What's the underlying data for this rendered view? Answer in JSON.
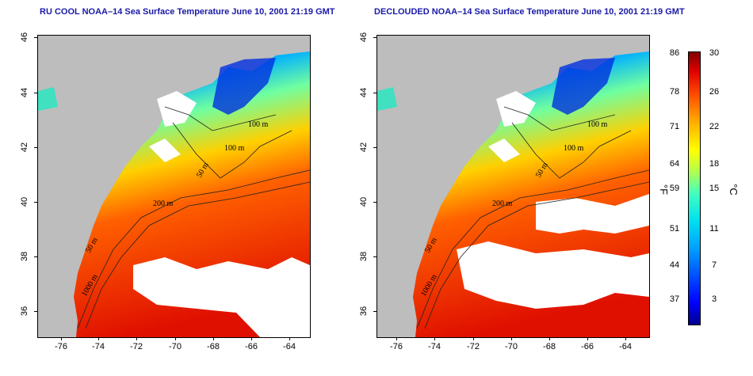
{
  "left_panel": {
    "title": "RU COOL NOAA–14 Sea Surface Temperature June 10, 2001 21:19 GMT",
    "contour_labels": [
      "100 m",
      "100 m",
      "50 m",
      "200 m",
      "50 m",
      "1000 m"
    ]
  },
  "right_panel": {
    "title": "DECLOUDED NOAA–14 Sea Surface Temperature June 10, 2001 21:19 GMT",
    "contour_labels": [
      "100 m",
      "100 m",
      "50 m",
      "200 m",
      "50 m",
      "1000 m"
    ]
  },
  "axes": {
    "lat_ticks": [
      "46",
      "44",
      "42",
      "40",
      "38",
      "36"
    ],
    "lon_ticks": [
      "-76",
      "-74",
      "-72",
      "-70",
      "-68",
      "-66",
      "-64"
    ]
  },
  "colorbar": {
    "fahrenheit_ticks": [
      "86",
      "78",
      "71",
      "64",
      "59",
      "51",
      "44",
      "37"
    ],
    "celsius_ticks": [
      "30",
      "26",
      "22",
      "18",
      "15",
      "11",
      "7",
      "3"
    ],
    "fahrenheit_unit": "°F",
    "celsius_unit": "°C"
  },
  "colors": {
    "land": "#bdbdbd",
    "cloud": "#ffffff",
    "title": "#1a1aa8"
  }
}
